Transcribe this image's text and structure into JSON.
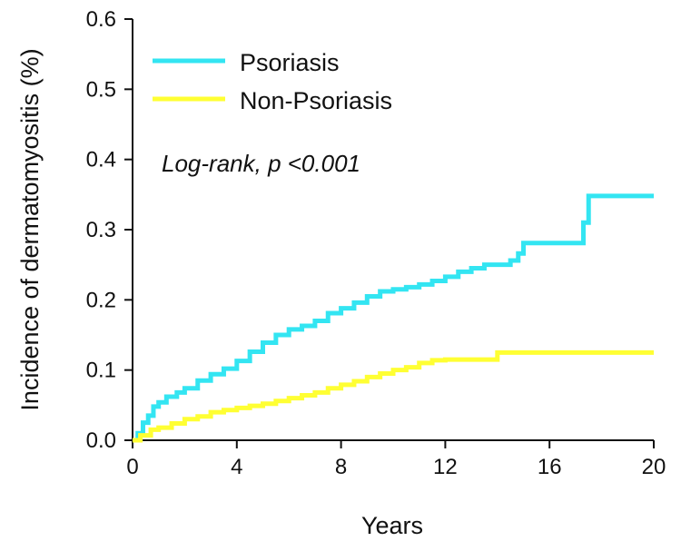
{
  "chart_data": {
    "type": "line",
    "title": "",
    "xlabel": "Years",
    "ylabel": "Incidence of dermatomyositis (%)",
    "xlim": [
      0,
      20
    ],
    "ylim": [
      0,
      0.6
    ],
    "x_ticks": [
      0,
      4,
      8,
      12,
      16,
      20
    ],
    "y_ticks": [
      "0.0",
      "0.1",
      "0.2",
      "0.3",
      "0.4",
      "0.5",
      "0.6"
    ],
    "grid": false,
    "legend_position": "top-left",
    "annotation": "Log-rank, p <0.001",
    "series": [
      {
        "name": "Psoriasis",
        "color": "#33e5f2",
        "step": true,
        "points": [
          [
            0.0,
            0.0
          ],
          [
            0.2,
            0.01
          ],
          [
            0.4,
            0.025
          ],
          [
            0.6,
            0.035
          ],
          [
            0.8,
            0.048
          ],
          [
            1.0,
            0.054
          ],
          [
            1.3,
            0.062
          ],
          [
            1.7,
            0.068
          ],
          [
            2.0,
            0.074
          ],
          [
            2.5,
            0.085
          ],
          [
            3.0,
            0.094
          ],
          [
            3.5,
            0.102
          ],
          [
            4.0,
            0.113
          ],
          [
            4.5,
            0.126
          ],
          [
            5.0,
            0.139
          ],
          [
            5.5,
            0.15
          ],
          [
            6.0,
            0.158
          ],
          [
            6.5,
            0.163
          ],
          [
            7.0,
            0.17
          ],
          [
            7.5,
            0.181
          ],
          [
            8.0,
            0.188
          ],
          [
            8.5,
            0.196
          ],
          [
            9.0,
            0.205
          ],
          [
            9.5,
            0.212
          ],
          [
            10.0,
            0.215
          ],
          [
            10.5,
            0.218
          ],
          [
            11.0,
            0.222
          ],
          [
            11.5,
            0.227
          ],
          [
            12.0,
            0.233
          ],
          [
            12.5,
            0.24
          ],
          [
            13.0,
            0.245
          ],
          [
            13.5,
            0.25
          ],
          [
            14.0,
            0.25
          ],
          [
            14.5,
            0.256
          ],
          [
            14.8,
            0.266
          ],
          [
            15.0,
            0.281
          ],
          [
            17.3,
            0.31
          ],
          [
            17.5,
            0.348
          ],
          [
            20.0,
            0.348
          ]
        ]
      },
      {
        "name": "Non-Psoriasis",
        "color": "#ffff33",
        "step": true,
        "points": [
          [
            0.0,
            0.0
          ],
          [
            0.3,
            0.007
          ],
          [
            0.7,
            0.015
          ],
          [
            1.0,
            0.018
          ],
          [
            1.5,
            0.024
          ],
          [
            2.0,
            0.03
          ],
          [
            2.5,
            0.034
          ],
          [
            3.0,
            0.04
          ],
          [
            3.5,
            0.043
          ],
          [
            4.0,
            0.046
          ],
          [
            4.5,
            0.049
          ],
          [
            5.0,
            0.052
          ],
          [
            5.5,
            0.056
          ],
          [
            6.0,
            0.06
          ],
          [
            6.5,
            0.064
          ],
          [
            7.0,
            0.068
          ],
          [
            7.5,
            0.074
          ],
          [
            8.0,
            0.079
          ],
          [
            8.5,
            0.084
          ],
          [
            9.0,
            0.09
          ],
          [
            9.5,
            0.095
          ],
          [
            10.0,
            0.1
          ],
          [
            10.5,
            0.104
          ],
          [
            11.0,
            0.11
          ],
          [
            11.5,
            0.114
          ],
          [
            12.0,
            0.115
          ],
          [
            13.0,
            0.115
          ],
          [
            14.0,
            0.125
          ],
          [
            20.0,
            0.125
          ]
        ]
      }
    ]
  }
}
